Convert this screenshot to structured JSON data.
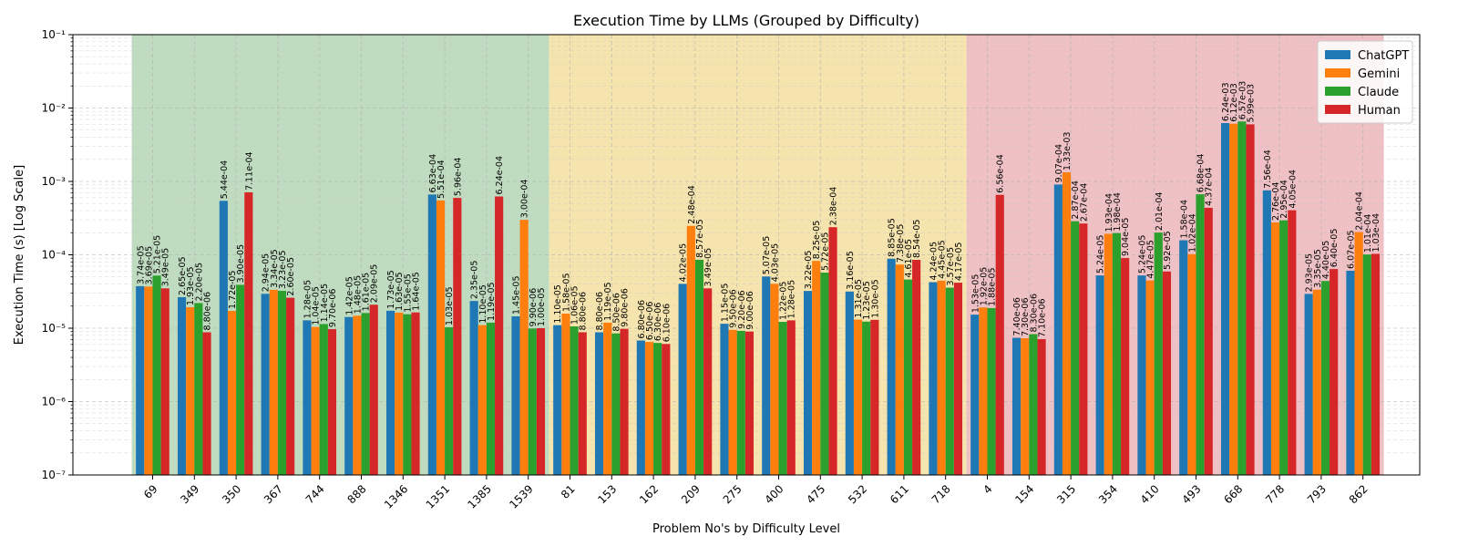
{
  "chart_data": {
    "type": "bar",
    "title": "Execution Time by LLMs (Grouped by Difficulty)",
    "xlabel": "Problem No's by Difficulty Level",
    "ylabel": "Execution Time (s) [Log Scale]",
    "yscale": "log",
    "ylim": [
      1e-07,
      0.1
    ],
    "ytick_labels": [
      "10⁻⁷",
      "10⁻⁶",
      "10⁻⁵",
      "10⁻⁴",
      "10⁻³",
      "10⁻²",
      "10⁻¹"
    ],
    "grid": true,
    "legend_position": "top-right",
    "categories": [
      "69",
      "349",
      "350",
      "367",
      "744",
      "888",
      "1346",
      "1351",
      "1385",
      "1539",
      "81",
      "153",
      "162",
      "209",
      "275",
      "400",
      "475",
      "532",
      "611",
      "718",
      "4",
      "154",
      "315",
      "354",
      "410",
      "493",
      "668",
      "778",
      "793",
      "862"
    ],
    "difficulty_bands": [
      {
        "start": 0,
        "end": 9,
        "color": "#bfdcc0"
      },
      {
        "start": 10,
        "end": 19,
        "color": "#f5e4ad"
      },
      {
        "start": 20,
        "end": 29,
        "color": "#efc0c4"
      }
    ],
    "series": [
      {
        "name": "ChatGPT",
        "color": "#1f77b4",
        "values": [
          3.74e-05,
          2.65e-05,
          0.000544,
          2.94e-05,
          1.28e-05,
          1.42e-05,
          1.73e-05,
          0.000663,
          2.35e-05,
          1.45e-05,
          1.1e-05,
          8.8e-06,
          6.8e-06,
          4.02e-05,
          1.15e-05,
          5.07e-05,
          3.22e-05,
          3.16e-05,
          8.85e-05,
          4.24e-05,
          1.53e-05,
          7.4e-06,
          0.000907,
          5.24e-05,
          5.24e-05,
          0.000158,
          0.00624,
          0.000756,
          2.93e-05,
          6.07e-05
        ],
        "labels": [
          "3.74e-05",
          "2.65e-05",
          "5.44e-04",
          "2.94e-05",
          "1.28e-05",
          "1.42e-05",
          "1.73e-05",
          "6.63e-04",
          "2.35e-05",
          "1.45e-05",
          "1.10e-05",
          "8.80e-06",
          "6.80e-06",
          "4.02e-05",
          "1.15e-05",
          "5.07e-05",
          "3.22e-05",
          "3.16e-05",
          "8.85e-05",
          "4.24e-05",
          "1.53e-05",
          "7.40e-06",
          "9.07e-04",
          "5.24e-05",
          "5.24e-05",
          "1.58e-04",
          "6.24e-03",
          "7.56e-04",
          "2.93e-05",
          "6.07e-05"
        ]
      },
      {
        "name": "Gemini",
        "color": "#ff7f0e",
        "values": [
          3.69e-05,
          1.93e-05,
          1.72e-05,
          3.34e-05,
          1.04e-05,
          1.48e-05,
          1.63e-05,
          0.000551,
          1.1e-05,
          0.0003,
          1.58e-05,
          1.19e-05,
          6.5e-06,
          0.000248,
          9.5e-06,
          4.03e-05,
          8.25e-05,
          1.31e-05,
          7.38e-05,
          4.45e-05,
          1.92e-05,
          7.3e-06,
          0.00133,
          0.000193,
          4.47e-05,
          0.000102,
          0.00612,
          0.000276,
          3.35e-05,
          0.000204
        ],
        "labels": [
          "3.69e-05",
          "1.93e-05",
          "1.72e-05",
          "3.34e-05",
          "1.04e-05",
          "1.48e-05",
          "1.63e-05",
          "5.51e-04",
          "1.10e-05",
          "3.00e-04",
          "1.58e-05",
          "1.19e-05",
          "6.50e-06",
          "2.48e-04",
          "9.50e-06",
          "4.03e-05",
          "8.25e-05",
          "1.31e-05",
          "7.38e-05",
          "4.45e-05",
          "1.92e-05",
          "7.30e-06",
          "1.33e-03",
          "1.93e-04",
          "4.47e-05",
          "1.02e-04",
          "6.12e-03",
          "2.76e-04",
          "3.35e-05",
          "2.04e-04"
        ]
      },
      {
        "name": "Claude",
        "color": "#2ca02c",
        "values": [
          5.21e-05,
          2.2e-05,
          3.9e-05,
          3.23e-05,
          1.14e-05,
          1.61e-05,
          1.55e-05,
          1.03e-05,
          1.19e-05,
          9.9e-06,
          1.06e-05,
          8.5e-06,
          6.3e-06,
          8.57e-05,
          9.2e-06,
          1.22e-05,
          5.72e-05,
          1.23e-05,
          4.61e-05,
          3.57e-05,
          1.88e-05,
          8.3e-06,
          0.000287,
          0.000198,
          0.000201,
          0.000668,
          0.00657,
          0.000295,
          4.4e-05,
          0.000101
        ],
        "labels": [
          "5.21e-05",
          "2.20e-05",
          "3.90e-05",
          "3.23e-05",
          "1.14e-05",
          "1.61e-05",
          "1.55e-05",
          "1.03e-05",
          "1.19e-05",
          "9.90e-06",
          "1.06e-05",
          "8.50e-06",
          "6.30e-06",
          "8.57e-05",
          "9.20e-06",
          "1.22e-05",
          "5.72e-05",
          "1.23e-05",
          "4.61e-05",
          "3.57e-05",
          "1.88e-05",
          "8.30e-06",
          "2.87e-04",
          "1.98e-04",
          "2.01e-04",
          "6.68e-04",
          "6.57e-03",
          "2.95e-04",
          "4.40e-05",
          "1.01e-04"
        ]
      },
      {
        "name": "Human",
        "color": "#d62728",
        "values": [
          3.49e-05,
          8.8e-06,
          0.000711,
          2.6e-05,
          9.7e-06,
          2.09e-05,
          1.64e-05,
          0.000596,
          0.000624,
          1e-05,
          8.8e-06,
          9.8e-06,
          6.1e-06,
          3.49e-05,
          9e-06,
          1.28e-05,
          0.000238,
          1.3e-05,
          8.54e-05,
          4.17e-05,
          0.000656,
          7.1e-06,
          0.000267,
          9.04e-05,
          5.92e-05,
          0.000437,
          0.00599,
          0.000405,
          6.4e-05,
          0.000103
        ],
        "labels": [
          "3.49e-05",
          "8.80e-06",
          "7.11e-04",
          "2.60e-05",
          "9.70e-06",
          "2.09e-05",
          "1.64e-05",
          "5.96e-04",
          "6.24e-04",
          "1.00e-05",
          "8.80e-06",
          "9.80e-06",
          "6.10e-06",
          "3.49e-05",
          "9.00e-06",
          "1.28e-05",
          "2.38e-04",
          "1.30e-05",
          "8.54e-05",
          "4.17e-05",
          "6.56e-04",
          "7.10e-06",
          "2.67e-04",
          "9.04e-05",
          "5.92e-05",
          "4.37e-04",
          "5.99e-03",
          "4.05e-04",
          "6.40e-05",
          "1.03e-04"
        ]
      }
    ]
  }
}
